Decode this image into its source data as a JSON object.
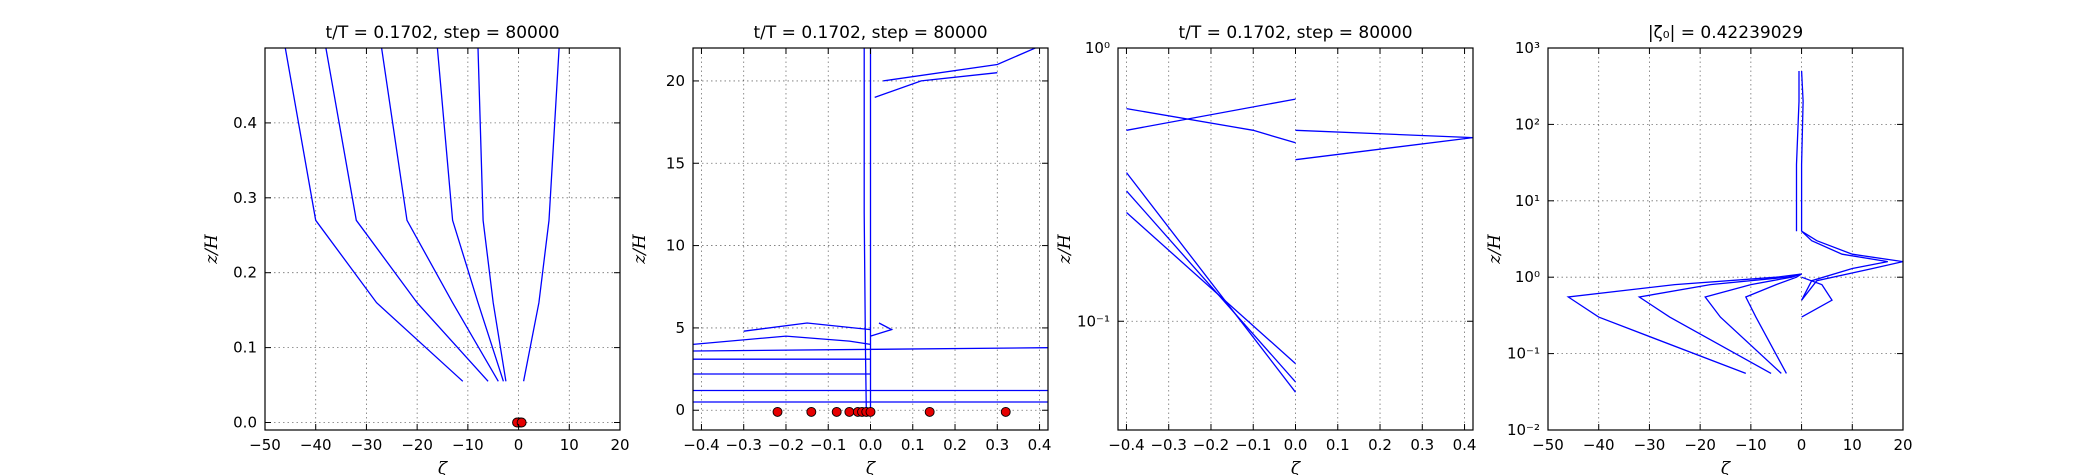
{
  "chart_data": [
    {
      "type": "line",
      "title": "t/T = 0.1702, step = 80000",
      "xlabel": "ζ",
      "ylabel": "z/H",
      "xscale": "linear",
      "yscale": "linear",
      "xlim": [
        -50,
        20
      ],
      "ylim": [
        -0.01,
        0.5
      ],
      "xticks": [
        -50,
        -40,
        -30,
        -20,
        -10,
        0,
        10,
        20
      ],
      "yticks": [
        0.0,
        0.1,
        0.2,
        0.3,
        0.4
      ],
      "xtick_labels": [
        "−50",
        "−40",
        "−30",
        "−20",
        "−10",
        "0",
        "10",
        "20"
      ],
      "ytick_labels": [
        "0.0",
        "0.1",
        "0.2",
        "0.3",
        "0.4"
      ],
      "grid": true,
      "series_color": "#0000ff",
      "series": [
        {
          "x": [
            -11,
            -28,
            -40,
            -46
          ],
          "y": [
            0.055,
            0.16,
            0.27,
            0.5
          ]
        },
        {
          "x": [
            -6,
            -20,
            -32,
            -38
          ],
          "y": [
            0.055,
            0.16,
            0.27,
            0.5
          ]
        },
        {
          "x": [
            -4,
            -13,
            -22,
            -27
          ],
          "y": [
            0.055,
            0.16,
            0.27,
            0.5
          ]
        },
        {
          "x": [
            -3,
            -8,
            -13,
            -16
          ],
          "y": [
            0.055,
            0.16,
            0.27,
            0.5
          ]
        },
        {
          "x": [
            -2.5,
            -5,
            -7,
            -8
          ],
          "y": [
            0.055,
            0.16,
            0.27,
            0.5
          ]
        },
        {
          "x": [
            1,
            4,
            6,
            8
          ],
          "y": [
            0.055,
            0.16,
            0.27,
            0.5
          ]
        }
      ],
      "points": {
        "color": "#e60000",
        "x": [
          0,
          0.3,
          -0.3,
          0.6
        ],
        "y": [
          0,
          0,
          0,
          0
        ]
      }
    },
    {
      "type": "line",
      "title": "t/T = 0.1702, step = 80000",
      "xlabel": "ζ",
      "ylabel": "z/H",
      "xscale": "linear",
      "yscale": "linear",
      "xlim": [
        -0.42,
        0.42
      ],
      "ylim": [
        -1.2,
        22
      ],
      "xticks": [
        -0.4,
        -0.3,
        -0.2,
        -0.1,
        0.0,
        0.1,
        0.2,
        0.3,
        0.4
      ],
      "yticks": [
        0,
        5,
        10,
        15,
        20
      ],
      "xtick_labels": [
        "−0.4",
        "−0.3",
        "−0.2",
        "−0.1",
        "0.0",
        "0.1",
        "0.2",
        "0.3",
        "0.4"
      ],
      "ytick_labels": [
        "0",
        "5",
        "10",
        "15",
        "20"
      ],
      "grid": true,
      "series_color": "#0000ff",
      "series": [
        {
          "x": [
            0,
            0,
            0,
            0
          ],
          "y": [
            0,
            4,
            12,
            22
          ]
        },
        {
          "x": [
            -0.01,
            -0.012,
            -0.015,
            -0.015
          ],
          "y": [
            0,
            4,
            12,
            22
          ]
        },
        {
          "x": [
            0.03,
            0.3,
            0.39
          ],
          "y": [
            20,
            21,
            22
          ]
        },
        {
          "x": [
            0.01,
            0.12,
            0.3
          ],
          "y": [
            19,
            20,
            20.5
          ]
        },
        {
          "x": [
            -0.42,
            -0.2,
            -0.05,
            0
          ],
          "y": [
            4,
            4.5,
            4.2,
            4
          ]
        },
        {
          "x": [
            -0.3,
            -0.15,
            0
          ],
          "y": [
            4.8,
            5.3,
            4.9
          ]
        },
        {
          "x": [
            0,
            0.05,
            0.02
          ],
          "y": [
            4.5,
            4.9,
            5.3
          ]
        },
        {
          "x": [
            -0.42,
            0.42
          ],
          "y": [
            3.6,
            3.8
          ]
        },
        {
          "x": [
            -0.42,
            0.42
          ],
          "y": [
            1.2,
            1.2
          ]
        },
        {
          "x": [
            -0.42,
            0.42
          ],
          "y": [
            0.5,
            0.5
          ]
        },
        {
          "x": [
            -0.42,
            0
          ],
          "y": [
            2.2,
            2.2
          ]
        },
        {
          "x": [
            -0.42,
            0
          ],
          "y": [
            3.1,
            3.1
          ]
        }
      ],
      "points": {
        "color": "#e60000",
        "x": [
          -0.22,
          -0.14,
          -0.08,
          -0.05,
          -0.03,
          -0.02,
          -0.01,
          0.0,
          0.14,
          0.32
        ],
        "y": [
          -0.1,
          -0.1,
          -0.1,
          -0.1,
          -0.1,
          -0.1,
          -0.1,
          -0.1,
          -0.1,
          -0.1
        ]
      }
    },
    {
      "type": "line",
      "title": "t/T = 0.1702, step = 80000",
      "xlabel": "ζ",
      "ylabel": "z/H",
      "xscale": "linear",
      "yscale": "log",
      "xlim": [
        -0.42,
        0.42
      ],
      "ylim": [
        0.04,
        1.0
      ],
      "xticks": [
        -0.4,
        -0.3,
        -0.2,
        -0.1,
        0.0,
        0.1,
        0.2,
        0.3,
        0.4
      ],
      "yticks": [
        0.1,
        1.0
      ],
      "xtick_labels": [
        "−0.4",
        "−0.3",
        "−0.2",
        "−0.1",
        "0.0",
        "0.1",
        "0.2",
        "0.3",
        "0.4"
      ],
      "ytick_labels": [
        "10⁻¹",
        "10⁰"
      ],
      "grid": true,
      "series_color": "#0000ff",
      "series": [
        {
          "x": [
            -0.4,
            0.0
          ],
          "y": [
            0.35,
            0.055
          ]
        },
        {
          "x": [
            -0.4,
            0.0
          ],
          "y": [
            0.3,
            0.06
          ]
        },
        {
          "x": [
            -0.4,
            0.0
          ],
          "y": [
            0.25,
            0.07
          ]
        },
        {
          "x": [
            -0.4,
            0.0
          ],
          "y": [
            0.5,
            0.65
          ]
        },
        {
          "x": [
            -0.4,
            -0.1,
            0.0
          ],
          "y": [
            0.6,
            0.5,
            0.45
          ]
        },
        {
          "x": [
            0.0,
            0.42
          ],
          "y": [
            0.5,
            0.47
          ]
        },
        {
          "x": [
            0.0,
            0.42
          ],
          "y": [
            0.39,
            0.47
          ]
        }
      ],
      "points": {
        "color": "#e60000",
        "x": [],
        "y": []
      }
    },
    {
      "type": "line",
      "title": "|ζ₀| = 0.42239029",
      "xlabel": "ζ",
      "ylabel": "z/H",
      "xscale": "linear",
      "yscale": "log",
      "xlim": [
        -50,
        20
      ],
      "ylim": [
        0.01,
        1000
      ],
      "xticks": [
        -50,
        -40,
        -30,
        -20,
        -10,
        0,
        10,
        20
      ],
      "yticks": [
        0.01,
        0.1,
        1,
        10,
        100,
        1000
      ],
      "xtick_labels": [
        "−50",
        "−40",
        "−30",
        "−20",
        "−10",
        "0",
        "10",
        "20"
      ],
      "ytick_labels": [
        "10⁻²",
        "10⁻¹",
        "10⁰",
        "10¹",
        "10²",
        "10³"
      ],
      "grid": true,
      "series_color": "#0000ff",
      "series": [
        {
          "x": [
            -11,
            -40,
            -46,
            -25,
            -5,
            0
          ],
          "y": [
            0.055,
            0.3,
            0.55,
            0.8,
            1.0,
            1.1
          ]
        },
        {
          "x": [
            -6,
            -26,
            -32,
            -18,
            -3,
            0
          ],
          "y": [
            0.055,
            0.3,
            0.55,
            0.8,
            1.0,
            1.1
          ]
        },
        {
          "x": [
            -4,
            -16,
            -19,
            -10,
            -2,
            0
          ],
          "y": [
            0.055,
            0.3,
            0.55,
            0.8,
            1.0,
            1.1
          ]
        },
        {
          "x": [
            -3,
            -9,
            -11,
            -5,
            -1,
            0
          ],
          "y": [
            0.055,
            0.3,
            0.55,
            0.8,
            1.0,
            1.1
          ]
        },
        {
          "x": [
            0,
            3,
            14,
            20,
            10,
            3,
            0
          ],
          "y": [
            0.5,
            0.9,
            1.3,
            1.6,
            2.0,
            3,
            4
          ]
        },
        {
          "x": [
            0,
            2,
            10,
            17,
            8,
            2,
            0
          ],
          "y": [
            0.5,
            0.9,
            1.3,
            1.6,
            2.0,
            3,
            4
          ]
        },
        {
          "x": [
            0,
            6,
            4,
            0
          ],
          "y": [
            0.3,
            0.5,
            0.8,
            1.0
          ]
        },
        {
          "x": [
            0,
            0,
            0.3,
            0
          ],
          "y": [
            4,
            30,
            200,
            500
          ]
        },
        {
          "x": [
            -1,
            -1,
            -0.5,
            -0.5
          ],
          "y": [
            4,
            30,
            200,
            500
          ]
        }
      ],
      "points": {
        "color": "#e60000",
        "x": [],
        "y": []
      }
    }
  ]
}
